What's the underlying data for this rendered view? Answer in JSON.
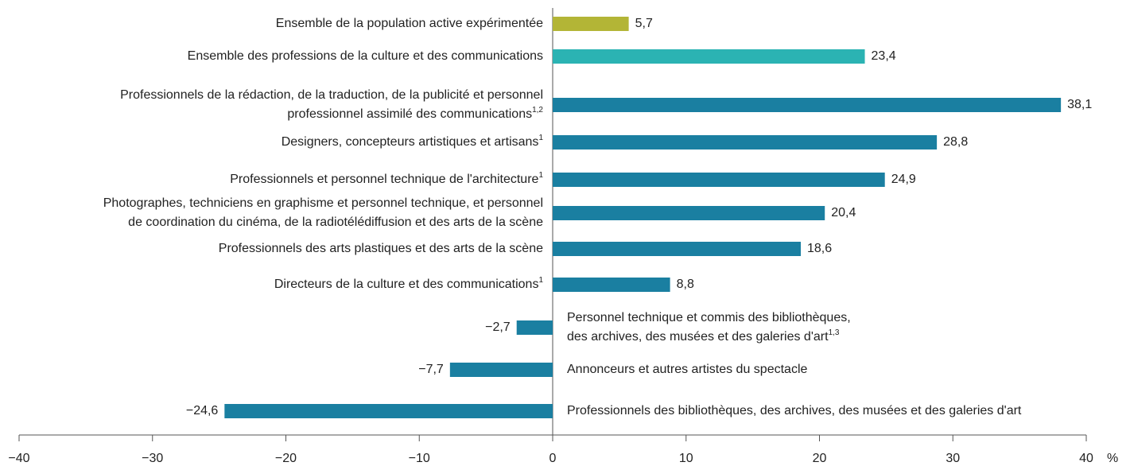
{
  "chart_data": {
    "type": "barh",
    "categories": [
      [
        "Ensemble de la population active expérimentée"
      ],
      [
        "Ensemble des professions de la culture et des communications"
      ],
      [
        "Professionnels de la rédaction, de la traduction, de la publicité et personnel",
        "professionnel assimilé des communications"
      ],
      [
        "Designers, concepteurs artistiques et artisans"
      ],
      [
        "Professionnels et personnel technique de l'architecture"
      ],
      [
        "Photographes, techniciens en graphisme et personnel technique, et personnel",
        "de coordination du cinéma, de la radiotélédiffusion et des arts de la scène"
      ],
      [
        "Professionnels des arts plastiques et des arts de la scène"
      ],
      [
        "Directeurs de la culture et des communications"
      ],
      [
        "Personnel technique et commis des bibliothèques,",
        "des archives, des musées et des galeries d'art"
      ],
      [
        "Annonceurs et autres artistes du spectacle"
      ],
      [
        "Professionnels des bibliothèques, des archives, des musées et des galeries d'art"
      ]
    ],
    "footnotes": [
      null,
      null,
      "1,2",
      "1",
      "1",
      null,
      null,
      "1",
      "1,3",
      null,
      null
    ],
    "values": [
      5.7,
      23.4,
      38.1,
      28.8,
      24.9,
      20.4,
      18.6,
      8.8,
      -2.7,
      -7.7,
      -24.6
    ],
    "value_labels": [
      "5,7",
      "23,4",
      "38,1",
      "28,8",
      "24,9",
      "20,4",
      "18,6",
      "8,8",
      "−2,7",
      "−7,7",
      "−24,6"
    ],
    "colors": [
      "#b3b536",
      "#2bb3b3",
      "#1a7fa1",
      "#1a7fa1",
      "#1a7fa1",
      "#1a7fa1",
      "#1a7fa1",
      "#1a7fa1",
      "#1a7fa1",
      "#1a7fa1",
      "#1a7fa1"
    ],
    "xlim": [
      -40,
      40
    ],
    "xticks": [
      {
        "value": -40,
        "label": "−40"
      },
      {
        "value": -30,
        "label": "−30"
      },
      {
        "value": -20,
        "label": "−20"
      },
      {
        "value": -10,
        "label": "−10"
      },
      0,
      10,
      20,
      30,
      40
    ],
    "x_label": "%"
  }
}
